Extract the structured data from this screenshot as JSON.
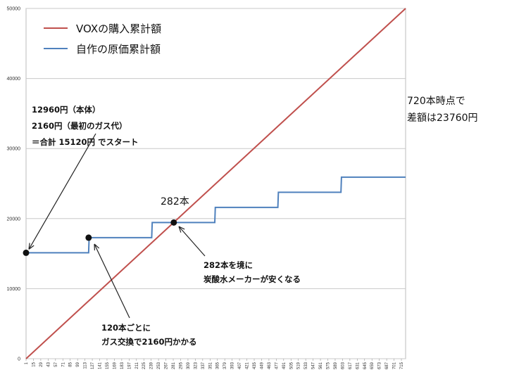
{
  "chart_data": {
    "type": "line",
    "ylim": [
      0,
      50000
    ],
    "y_ticks": [
      "0",
      "10000",
      "20000",
      "30000",
      "40000",
      "50000"
    ],
    "x_range": [
      1,
      723
    ],
    "x_ticks": [
      "1",
      "15",
      "29",
      "43",
      "57",
      "71",
      "85",
      "99",
      "113",
      "127",
      "141",
      "155",
      "169",
      "183",
      "197",
      "211",
      "225",
      "239",
      "253",
      "267",
      "281",
      "295",
      "309",
      "323",
      "337",
      "351",
      "365",
      "379",
      "393",
      "407",
      "421",
      "435",
      "449",
      "463",
      "477",
      "491",
      "505",
      "519",
      "533",
      "547",
      "561",
      "575",
      "589",
      "603",
      "617",
      "631",
      "645",
      "659",
      "673",
      "687",
      "701",
      "715"
    ],
    "grid": "horizontal",
    "legend_position": "top-left",
    "series": [
      {
        "name": "VOXの購入累計額",
        "color": "#c0504d",
        "x": [
          1,
          723
        ],
        "y": [
          0,
          50000
        ]
      },
      {
        "name": "自作の原価累計額",
        "color": "#4f81bd",
        "step": true,
        "x": [
          1,
          120,
          121,
          240,
          241,
          360,
          361,
          480,
          481,
          600,
          601,
          723
        ],
        "y": [
          15120,
          15120,
          17280,
          17280,
          19440,
          19440,
          21600,
          21600,
          23760,
          23760,
          25920,
          25920
        ]
      }
    ],
    "markers": [
      {
        "x": 1,
        "y": 15120
      },
      {
        "x": 120,
        "y": 17280
      },
      {
        "x": 282,
        "y": 19440
      }
    ],
    "annotations": {
      "start": [
        "12960円（本体）",
        "2160円（最初のガス代）",
        "＝合計 15120円 でスタート"
      ],
      "gas": [
        "120本ごとに",
        "ガス交換で2160円かかる"
      ],
      "break": [
        "282本を境に",
        "炭酸水メーカーが安くなる"
      ],
      "break_label": "282本",
      "diff": [
        "720本時点で",
        "差額は23760円"
      ]
    }
  }
}
